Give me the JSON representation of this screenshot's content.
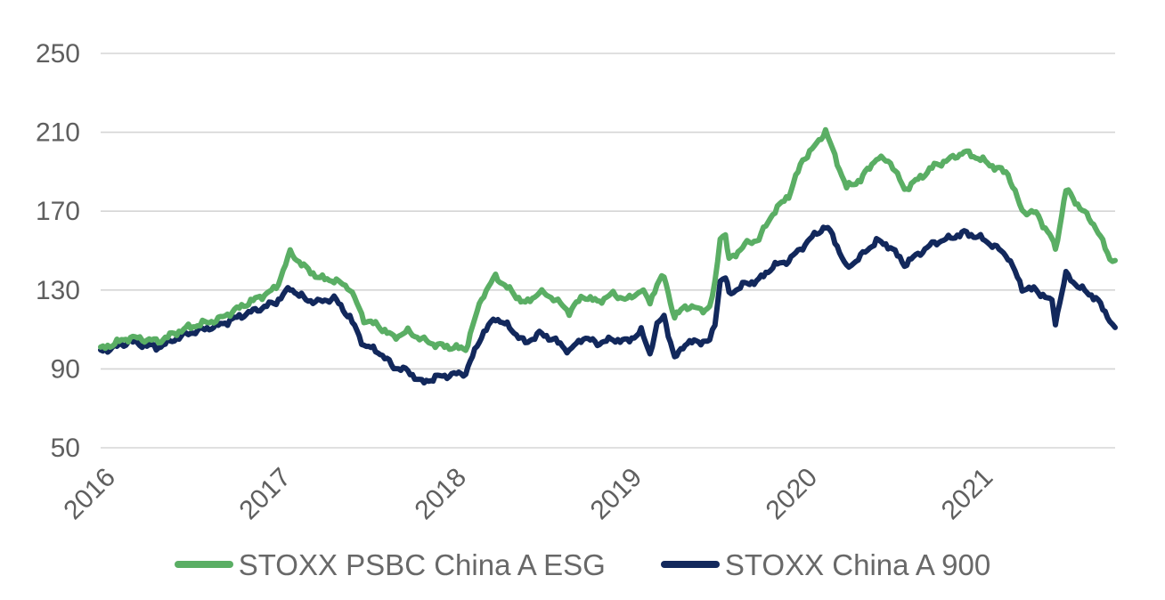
{
  "chart_data": {
    "type": "line",
    "title": "",
    "xlabel": "",
    "ylabel": "",
    "x_unit": "year",
    "xlim": [
      2016,
      2021.78
    ],
    "ylim": [
      50,
      250
    ],
    "x_ticks": [
      2016,
      2017,
      2018,
      2019,
      2020,
      2021
    ],
    "y_ticks": [
      250,
      210,
      170,
      130,
      90,
      50
    ],
    "grid": "horizontal",
    "grid_color": "#d5d5d5",
    "tick_label_color": "#5f5f5f",
    "legend_position": "bottom",
    "x": [
      2016.0,
      2016.08,
      2016.17,
      2016.25,
      2016.33,
      2016.42,
      2016.5,
      2016.58,
      2016.67,
      2016.75,
      2016.83,
      2016.92,
      2017.0,
      2017.08,
      2017.17,
      2017.25,
      2017.33,
      2017.42,
      2017.5,
      2017.58,
      2017.67,
      2017.75,
      2017.83,
      2017.92,
      2018.0,
      2018.08,
      2018.17,
      2018.25,
      2018.33,
      2018.42,
      2018.5,
      2018.58,
      2018.67,
      2018.75,
      2018.83,
      2018.92,
      2019.0,
      2019.08,
      2019.13,
      2019.17,
      2019.21,
      2019.27,
      2019.33,
      2019.42,
      2019.47,
      2019.5,
      2019.53,
      2019.56,
      2019.58,
      2019.67,
      2019.75,
      2019.83,
      2019.92,
      2020.0,
      2020.08,
      2020.13,
      2020.17,
      2020.25,
      2020.33,
      2020.42,
      2020.5,
      2020.58,
      2020.67,
      2020.75,
      2020.83,
      2020.92,
      2021.0,
      2021.08,
      2021.17,
      2021.25,
      2021.33,
      2021.42,
      2021.44,
      2021.5,
      2021.58,
      2021.67,
      2021.75,
      2021.78
    ],
    "series": [
      {
        "name": "STOXX PSBC China A ESG",
        "color": "#5aae64",
        "values": [
          100,
          103,
          106,
          105,
          104,
          108,
          111,
          113,
          115,
          119,
          123,
          127,
          131,
          149,
          141,
          136,
          135,
          131,
          115,
          112,
          106,
          109,
          105,
          102,
          101,
          100,
          126,
          137,
          130,
          123,
          129,
          126,
          119,
          127,
          124,
          128,
          125,
          130,
          124,
          133,
          137,
          116,
          122,
          120,
          121,
          133,
          157,
          158,
          145,
          153,
          156,
          169,
          178,
          196,
          204,
          211,
          201,
          182,
          186,
          197,
          195,
          181,
          187,
          193,
          196,
          200,
          197,
          193,
          189,
          170,
          169,
          156,
          150,
          181,
          172,
          162,
          146,
          145
        ]
      },
      {
        "name": "STOXX China A 900",
        "color": "#12285c",
        "values": [
          99,
          101,
          104,
          102,
          101,
          105,
          108,
          110,
          112,
          115,
          118,
          121,
          124,
          131,
          125,
          124,
          126,
          116,
          102,
          99,
          91,
          89,
          83,
          86,
          87,
          88,
          107,
          116,
          111,
          103,
          108,
          105,
          99,
          106,
          103,
          105,
          104,
          109,
          98,
          112,
          117,
          95,
          103,
          104,
          104,
          113,
          135,
          136,
          128,
          133,
          135,
          142,
          145,
          152,
          159,
          162,
          158,
          141,
          147,
          155,
          152,
          143,
          149,
          154,
          156,
          159,
          157,
          153,
          147,
          131,
          130,
          124,
          114,
          138,
          131,
          126,
          115,
          111
        ]
      }
    ]
  }
}
